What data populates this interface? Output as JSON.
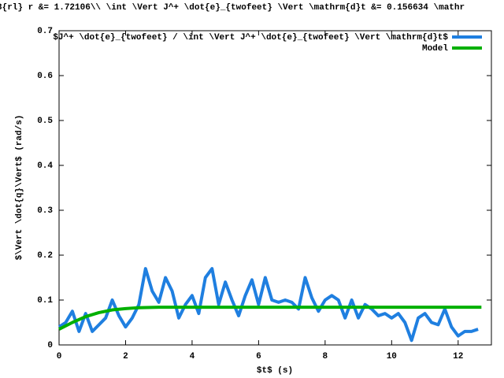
{
  "chart_data": {
    "type": "line",
    "title": "3{rl} r &= 1.72106\\\\ \\int \\Vert J^+ \\dot{e}_{twofeet} \\Vert \\mathrm{d}t &=  0.156634 \\mathr",
    "xlabel": "$t$ (s)",
    "ylabel": "$\\Vert \\dot{q}\\Vert$ (rad/s)",
    "xlim": [
      0,
      13
    ],
    "ylim": [
      0,
      0.7
    ],
    "xticks": [
      0,
      2,
      4,
      6,
      8,
      10,
      12
    ],
    "yticks": [
      0,
      0.1,
      0.2,
      0.3,
      0.4,
      0.5,
      0.6,
      0.7
    ],
    "legend": "upper right",
    "series": [
      {
        "name": "$J^+ \\dot{e}_{twofeet} / \\int \\Vert J^+ \\dot{e}_{twofeet} \\Vert \\mathrm{d}t$",
        "color": "#1f7fe0",
        "x": [
          0,
          0.2,
          0.4,
          0.6,
          0.8,
          1,
          1.2,
          1.4,
          1.6,
          1.8,
          2,
          2.2,
          2.4,
          2.6,
          2.8,
          3,
          3.2,
          3.4,
          3.6,
          3.8,
          4,
          4.2,
          4.4,
          4.6,
          4.8,
          5,
          5.2,
          5.4,
          5.6,
          5.8,
          6,
          6.2,
          6.4,
          6.6,
          6.8,
          7,
          7.2,
          7.4,
          7.6,
          7.8,
          8,
          8.2,
          8.4,
          8.6,
          8.8,
          9,
          9.2,
          9.4,
          9.6,
          9.8,
          10,
          10.2,
          10.4,
          10.6,
          10.8,
          11,
          11.2,
          11.4,
          11.6,
          11.8,
          12,
          12.2,
          12.4,
          12.6
        ],
        "values": [
          0.04,
          0.05,
          0.075,
          0.03,
          0.07,
          0.03,
          0.045,
          0.06,
          0.1,
          0.065,
          0.04,
          0.06,
          0.09,
          0.17,
          0.12,
          0.095,
          0.15,
          0.12,
          0.06,
          0.09,
          0.11,
          0.07,
          0.15,
          0.17,
          0.09,
          0.14,
          0.1,
          0.065,
          0.11,
          0.145,
          0.09,
          0.15,
          0.1,
          0.095,
          0.1,
          0.095,
          0.08,
          0.15,
          0.105,
          0.075,
          0.1,
          0.11,
          0.1,
          0.06,
          0.1,
          0.06,
          0.09,
          0.08,
          0.065,
          0.07,
          0.06,
          0.07,
          0.05,
          0.01,
          0.06,
          0.07,
          0.05,
          0.045,
          0.08,
          0.04,
          0.02,
          0.03,
          0.03,
          0.035
        ]
      },
      {
        "name": "Model",
        "color": "#00b000",
        "x": [
          0,
          0.4,
          0.8,
          1.2,
          1.6,
          2,
          2.4,
          3,
          12.7
        ],
        "values": [
          0.035,
          0.05,
          0.063,
          0.072,
          0.078,
          0.081,
          0.083,
          0.084,
          0.084
        ]
      }
    ]
  }
}
